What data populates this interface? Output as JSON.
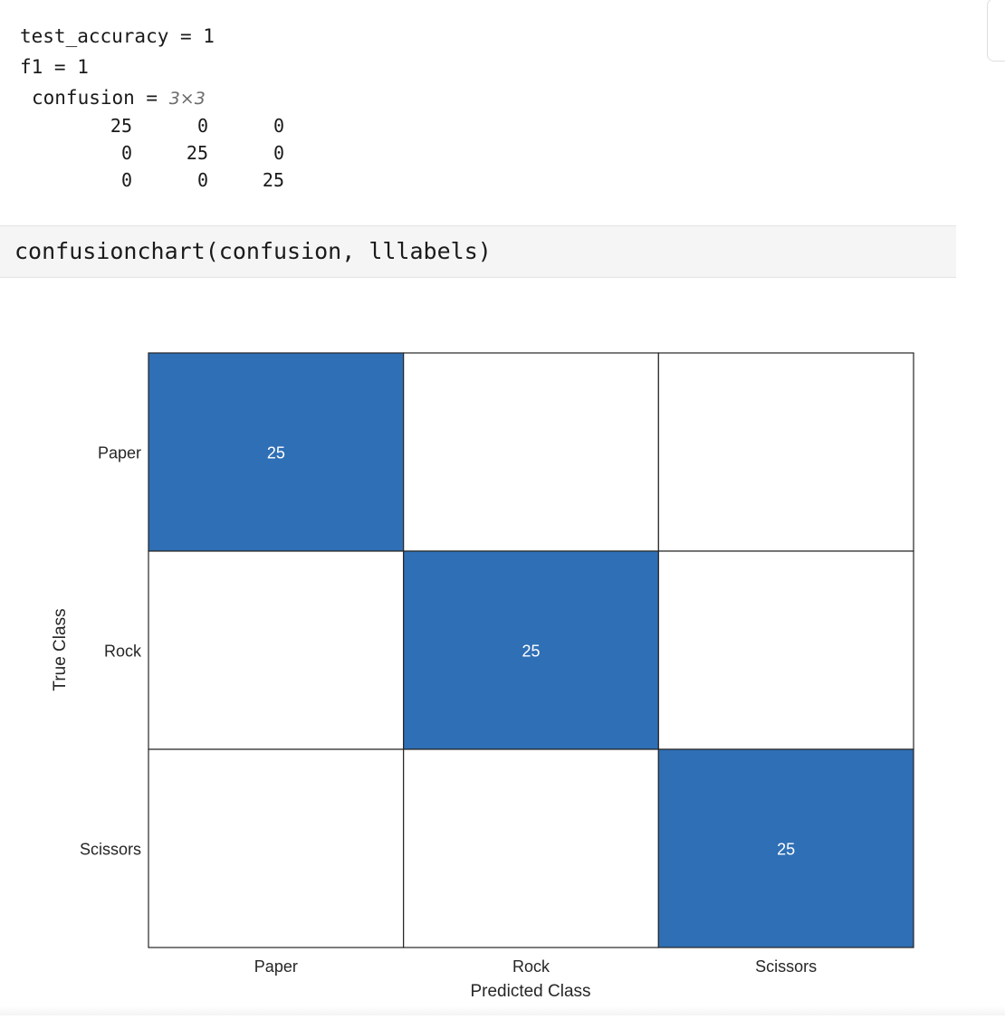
{
  "output": {
    "test_accuracy_line": "test_accuracy = 1",
    "f1_line": "f1 = 1",
    "confusion_label": "confusion = ",
    "confusion_dims": "3×3",
    "matrix": [
      [
        "25",
        "0",
        "0"
      ],
      [
        "0",
        "25",
        "0"
      ],
      [
        "0",
        "0",
        "25"
      ]
    ]
  },
  "code_cell": {
    "code": "confusionchart(confusion, lllabels)"
  },
  "colors": {
    "diagonal_fill": "#2f6fb5",
    "empty_fill": "#ffffff",
    "cell_border": "#262626",
    "code_background": "#f5f5f5"
  },
  "chart_data": {
    "type": "heatmap",
    "title": "",
    "xlabel": "Predicted Class",
    "ylabel": "True Class",
    "x_categories": [
      "Paper",
      "Rock",
      "Scissors"
    ],
    "y_categories": [
      "Paper",
      "Rock",
      "Scissors"
    ],
    "values": [
      [
        25,
        0,
        0
      ],
      [
        0,
        25,
        0
      ],
      [
        0,
        0,
        25
      ]
    ],
    "zero_cells_labeled": false
  }
}
